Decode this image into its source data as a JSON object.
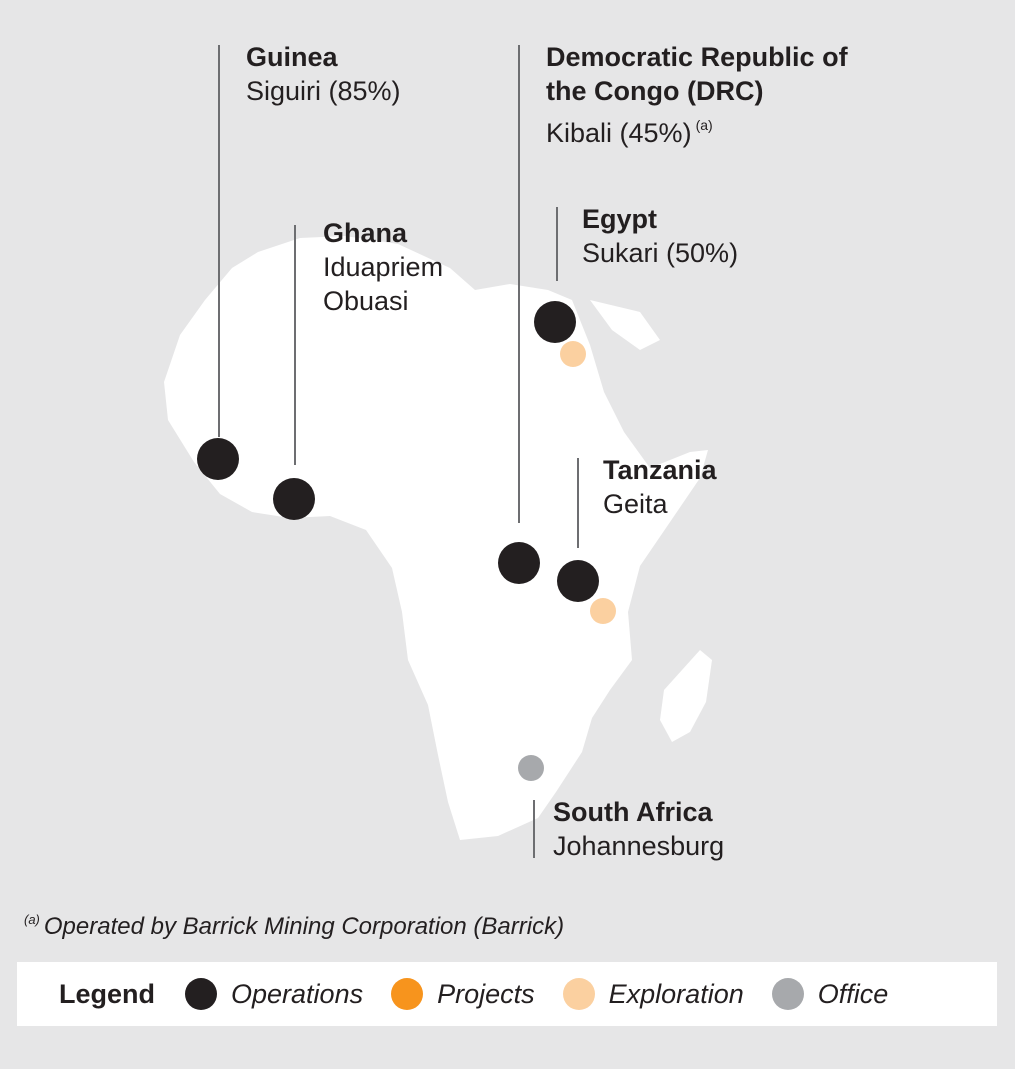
{
  "colors": {
    "background": "#e6e6e7",
    "land": "#ffffff",
    "operations": "#231f20",
    "projects": "#f7941d",
    "exploration": "#fbd0a0",
    "office": "#a7a9ac",
    "leader": "#6d6e71"
  },
  "labels": {
    "guinea": {
      "country": "Guinea",
      "sites": [
        "Siguiri (85%)"
      ]
    },
    "drc": {
      "country_line1": "Democratic Republic of",
      "country_line2": "the Congo (DRC)",
      "site": "Kibali (45%)",
      "note": "(a)"
    },
    "ghana": {
      "country": "Ghana",
      "sites": [
        "Iduapriem",
        "Obuasi"
      ]
    },
    "egypt": {
      "country": "Egypt",
      "sites": [
        "Sukari (50%)"
      ]
    },
    "tanzania": {
      "country": "Tanzania",
      "sites": [
        "Geita"
      ]
    },
    "south_africa": {
      "country": "South Africa",
      "sites": [
        "Johannesburg"
      ]
    }
  },
  "footnote": {
    "marker": "(a)",
    "text": "Operated by Barrick Mining Corporation (Barrick)"
  },
  "legend": {
    "title": "Legend",
    "items": [
      {
        "label": "Operations",
        "type": "operations"
      },
      {
        "label": "Projects",
        "type": "projects"
      },
      {
        "label": "Exploration",
        "type": "exploration"
      },
      {
        "label": "Office",
        "type": "office"
      }
    ]
  },
  "markers": [
    {
      "site": "Siguiri",
      "type": "operations"
    },
    {
      "site": "Ghana",
      "type": "operations"
    },
    {
      "site": "Sukari",
      "type": "operations"
    },
    {
      "site": "Egypt exploration",
      "type": "exploration"
    },
    {
      "site": "Kibali",
      "type": "operations"
    },
    {
      "site": "Geita",
      "type": "operations"
    },
    {
      "site": "Tanzania exploration",
      "type": "exploration"
    },
    {
      "site": "Johannesburg",
      "type": "office"
    }
  ]
}
